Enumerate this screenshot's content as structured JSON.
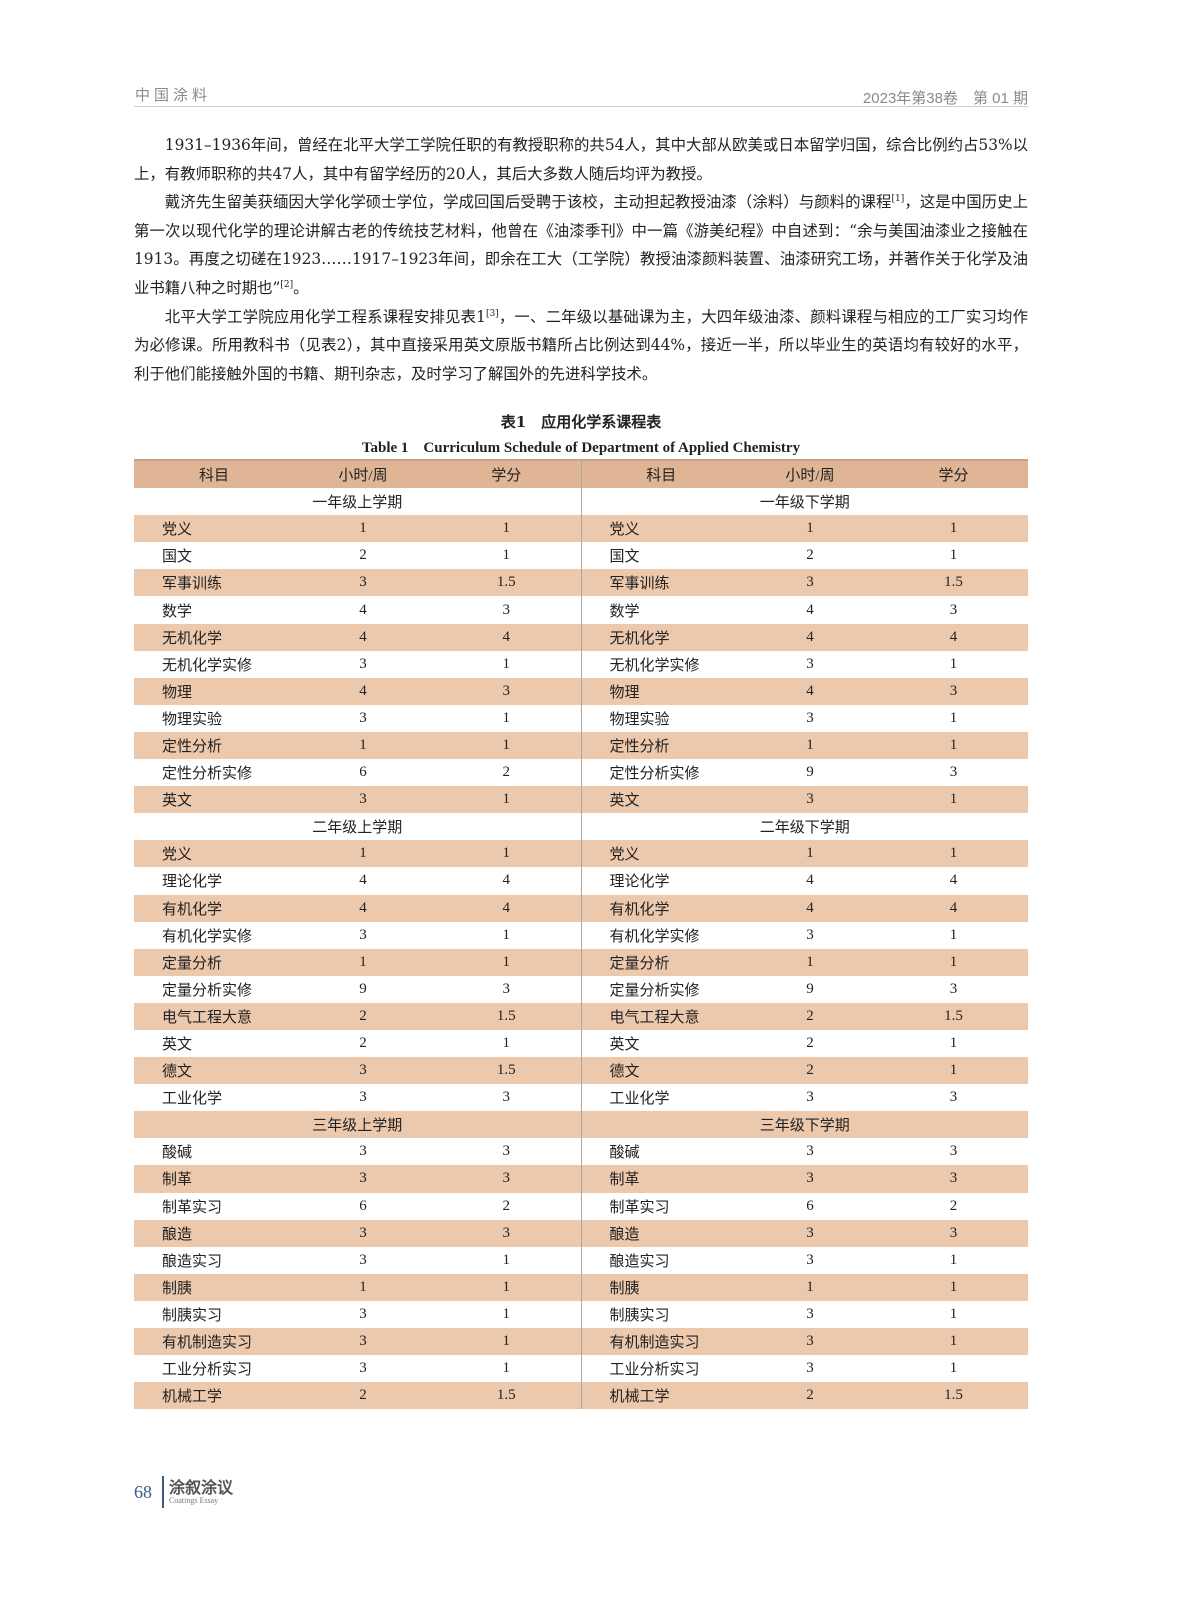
{
  "header": {
    "journal": "中国涂料",
    "issue": "2023年第38卷　第 01 期"
  },
  "paragraphs": [
    {
      "text": "1931–1936年间，曾经在北平大学工学院任职的有教授职称的共54人，其中大部从欧美或日本留学归国，综合比例约占53%以上，有教师职称的共47人，其中有留学经历的20人，其后大多数人随后均评为教授。"
    },
    {
      "text_a": "戴济先生留美获缅因大学化学硕士学位，学成回国后受聘于该校，主动担起教授油漆（涂料）与颜料的课程",
      "ref_a": "[1]",
      "text_b": "，这是中国历史上第一次以现代化学的理论讲解古老的传统技艺材料，他曾在《油漆季刊》中一篇《游美纪程》中自述到：“余与美国油漆业之接触在1913。再度之切磋在1923……1917–1923年间，即余在工大（工学院）教授油漆颜料装置、油漆研究工场，并著作关于化学及油业书籍八种之时期也”",
      "ref_b": "[2]",
      "text_c": "。"
    },
    {
      "text_a": "北平大学工学院应用化学工程系课程安排见表1",
      "ref_a": "[3]",
      "text_b": "，一、二年级以基础课为主，大四年级油漆、颜料课程与相应的工厂实习均作为必修课。所用教科书（见表2），其中直接采用英文原版书籍所占比例达到44%，接近一半，所以毕业生的英语均有较好的水平，利于他们能接触外国的书籍、期刊杂志，及时学习了解国外的先进科学技术。"
    }
  ],
  "table": {
    "caption_cn": "表1　应用化学系课程表",
    "caption_en": "Table 1　Curriculum Schedule of Department of Applied Chemistry",
    "columns": [
      "科目",
      "小时/周",
      "学分",
      "科目",
      "小时/周",
      "学分"
    ],
    "sections": [
      {
        "left": "一年级上学期",
        "right": "一年级下学期",
        "left_rows": [
          [
            "党义",
            "1",
            "1"
          ],
          [
            "国文",
            "2",
            "1"
          ],
          [
            "军事训练",
            "3",
            "1.5"
          ],
          [
            "数学",
            "4",
            "3"
          ],
          [
            "无机化学",
            "4",
            "4"
          ],
          [
            "无机化学实修",
            "3",
            "1"
          ],
          [
            "物理",
            "4",
            "3"
          ],
          [
            "物理实验",
            "3",
            "1"
          ],
          [
            "定性分析",
            "1",
            "1"
          ],
          [
            "定性分析实修",
            "6",
            "2"
          ],
          [
            "英文",
            "3",
            "1"
          ]
        ],
        "right_rows": [
          [
            "党义",
            "1",
            "1"
          ],
          [
            "国文",
            "2",
            "1"
          ],
          [
            "军事训练",
            "3",
            "1.5"
          ],
          [
            "数学",
            "4",
            "3"
          ],
          [
            "无机化学",
            "4",
            "4"
          ],
          [
            "无机化学实修",
            "3",
            "1"
          ],
          [
            "物理",
            "4",
            "3"
          ],
          [
            "物理实验",
            "3",
            "1"
          ],
          [
            "定性分析",
            "1",
            "1"
          ],
          [
            "定性分析实修",
            "9",
            "3"
          ],
          [
            "英文",
            "3",
            "1"
          ]
        ]
      },
      {
        "left": "二年级上学期",
        "right": "二年级下学期",
        "left_rows": [
          [
            "党义",
            "1",
            "1"
          ],
          [
            "理论化学",
            "4",
            "4"
          ],
          [
            "有机化学",
            "4",
            "4"
          ],
          [
            "有机化学实修",
            "3",
            "1"
          ],
          [
            "定量分析",
            "1",
            "1"
          ],
          [
            "定量分析实修",
            "9",
            "3"
          ],
          [
            "电气工程大意",
            "2",
            "1.5"
          ],
          [
            "英文",
            "2",
            "1"
          ],
          [
            "德文",
            "3",
            "1.5"
          ],
          [
            "工业化学",
            "3",
            "3"
          ]
        ],
        "right_rows": [
          [
            "党义",
            "1",
            "1"
          ],
          [
            "理论化学",
            "4",
            "4"
          ],
          [
            "有机化学",
            "4",
            "4"
          ],
          [
            "有机化学实修",
            "3",
            "1"
          ],
          [
            "定量分析",
            "1",
            "1"
          ],
          [
            "定量分析实修",
            "9",
            "3"
          ],
          [
            "电气工程大意",
            "2",
            "1.5"
          ],
          [
            "英文",
            "2",
            "1"
          ],
          [
            "德文",
            "2",
            "1"
          ],
          [
            "工业化学",
            "3",
            "3"
          ]
        ]
      },
      {
        "left": "三年级上学期",
        "right": "三年级下学期",
        "left_rows": [
          [
            "酸碱",
            "3",
            "3"
          ],
          [
            "制革",
            "3",
            "3"
          ],
          [
            "制革实习",
            "6",
            "2"
          ],
          [
            "酿造",
            "3",
            "3"
          ],
          [
            "酿造实习",
            "3",
            "1"
          ],
          [
            "制胰",
            "1",
            "1"
          ],
          [
            "制胰实习",
            "3",
            "1"
          ],
          [
            "有机制造实习",
            "3",
            "1"
          ],
          [
            "工业分析实习",
            "3",
            "1"
          ],
          [
            "机械工学",
            "2",
            "1.5"
          ]
        ],
        "right_rows": [
          [
            "酸碱",
            "3",
            "3"
          ],
          [
            "制革",
            "3",
            "3"
          ],
          [
            "制革实习",
            "6",
            "2"
          ],
          [
            "酿造",
            "3",
            "3"
          ],
          [
            "酿造实习",
            "3",
            "1"
          ],
          [
            "制胰",
            "1",
            "1"
          ],
          [
            "制胰实习",
            "3",
            "1"
          ],
          [
            "有机制造实习",
            "3",
            "1"
          ],
          [
            "工业分析实习",
            "3",
            "1"
          ],
          [
            "机械工学",
            "2",
            "1.5"
          ]
        ]
      }
    ]
  },
  "footer": {
    "page": "68",
    "column_cn": "涂叙涂议",
    "column_en": "Coatings Essay"
  },
  "colors": {
    "header_row": "#dfb596",
    "stripe_row": "#ecc8ad",
    "footer_accent": "#3a5a8a"
  }
}
